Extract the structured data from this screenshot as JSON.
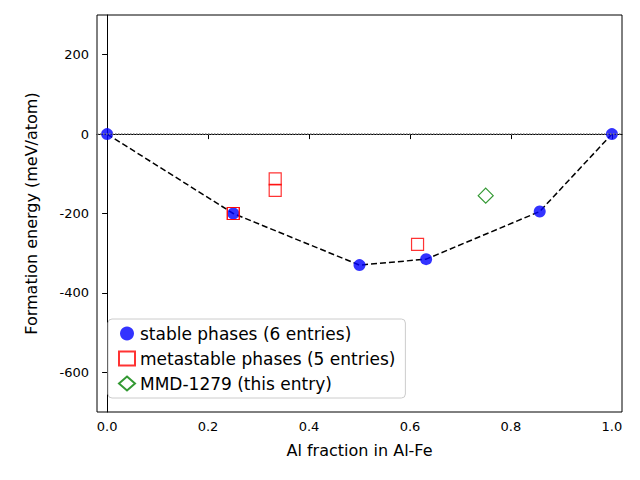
{
  "chart_data": {
    "type": "scatter",
    "xlabel": "Al fraction in Al-Fe",
    "ylabel": "Formation energy (meV/atom)",
    "xlim": [
      -0.02,
      1.02
    ],
    "ylim": [
      -700,
      300
    ],
    "xticks": [
      {
        "value": 0,
        "label": "0.0"
      },
      {
        "value": 0.2,
        "label": "0.2"
      },
      {
        "value": 0.4,
        "label": "0.4"
      },
      {
        "value": 0.6,
        "label": "0.6"
      },
      {
        "value": 0.8,
        "label": "0.8"
      },
      {
        "value": 1,
        "label": "1.0"
      }
    ],
    "yticks": [
      -600,
      -400,
      -200,
      0,
      200
    ],
    "grid": false,
    "legend": "lower left",
    "reference_lines": [
      {
        "y": 0,
        "line_style": "dotted",
        "color": "#808080"
      }
    ],
    "series": [
      {
        "name": "stable phases (6 entries)",
        "color": "#0000ff",
        "marker": "circle",
        "line_style": "dashed",
        "x": [
          0,
          0.25,
          0.5,
          0.632,
          0.857,
          1
        ],
        "values": [
          0,
          -200,
          -330,
          -315,
          -195,
          0
        ]
      },
      {
        "name": "metastable phases (5 entries)",
        "color": "#ff0000",
        "marker": "square",
        "x": [
          0.25,
          0.25,
          0.333,
          0.333,
          0.615
        ],
        "values": [
          -200,
          -200,
          -113,
          -142,
          -278
        ]
      },
      {
        "name": "MMD-1279 (this entry)",
        "color": "#008000",
        "marker": "diamond",
        "x": [
          0.75
        ],
        "values": [
          -155
        ]
      }
    ]
  }
}
